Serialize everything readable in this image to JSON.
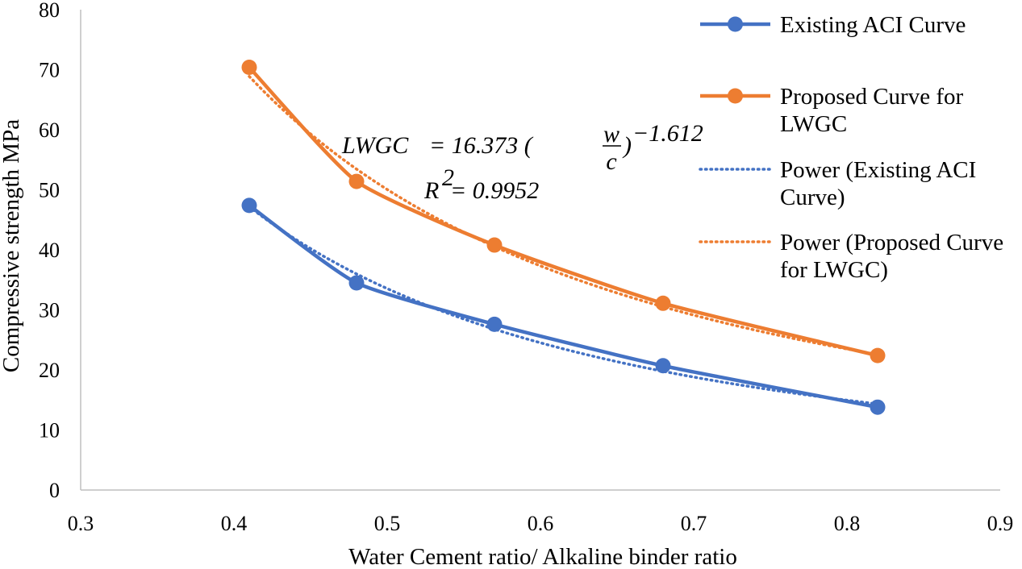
{
  "colors": {
    "aci": "#4472C4",
    "lwgc": "#ED7D31",
    "axis": "#BFBFBF"
  },
  "chart_data": {
    "type": "line",
    "title": "",
    "xlabel": "Water Cement ratio/ Alkaline binder ratio",
    "ylabel": "Compressive strength MPa",
    "xlim": [
      0.3,
      0.9
    ],
    "ylim": [
      0,
      80
    ],
    "x_ticks": [
      "0.3",
      "0.4",
      "0.5",
      "0.6",
      "0.7",
      "0.8",
      "0.9"
    ],
    "y_ticks": [
      "0",
      "10",
      "20",
      "30",
      "40",
      "50",
      "60",
      "70",
      "80"
    ],
    "grid": false,
    "legend_position": "right",
    "x": [
      0.41,
      0.48,
      0.57,
      0.68,
      0.82
    ],
    "series": [
      {
        "name": "Existing ACI Curve",
        "values": [
          47.4,
          34.5,
          27.6,
          20.7,
          13.8
        ],
        "style": "solid-marker",
        "color": "#4472C4"
      },
      {
        "name": "Proposed Curve for LWGC",
        "values": [
          70.4,
          51.4,
          40.8,
          31.1,
          22.4
        ],
        "style": "solid-marker",
        "color": "#ED7D31"
      },
      {
        "name": "Power (Existing ACI Curve)",
        "trend_of": 0,
        "style": "dotted",
        "color": "#4472C4"
      },
      {
        "name": "Power (Proposed Curve for LWGC)",
        "trend_of": 1,
        "style": "dotted",
        "color": "#ED7D31"
      }
    ],
    "legend_lines": [
      [
        "Existing ACI Curve"
      ],
      [
        "Proposed Curve for",
        "LWGC"
      ],
      [
        "Power (Existing ACI",
        "Curve)"
      ],
      [
        "Power (Proposed Curve",
        "for LWGC)"
      ]
    ],
    "annotations": {
      "eq_lhs": "LWGC",
      "eq_coef": "= 16.373 (",
      "eq_num": "w",
      "eq_den": "c",
      "eq_close": ")",
      "eq_exp": "−1.612",
      "r2_lhs": "R",
      "r2_exp": "2",
      "r2_rhs": " = 0.9952"
    }
  }
}
